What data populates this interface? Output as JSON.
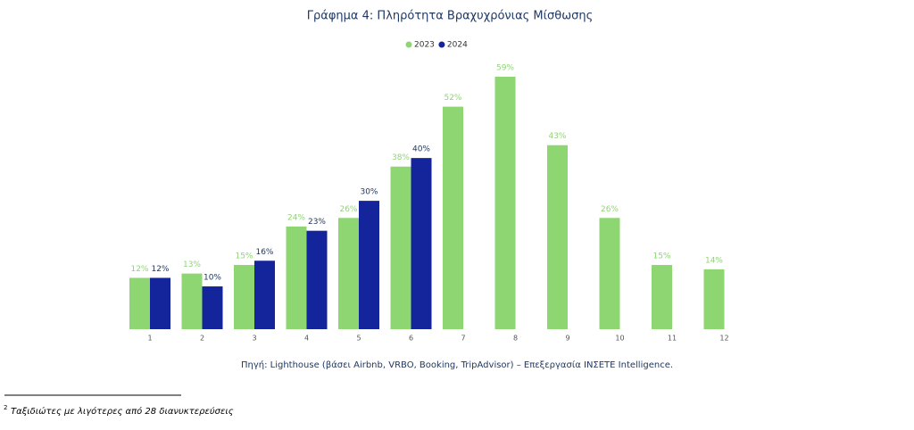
{
  "chart_data": {
    "type": "bar",
    "title": "Γράφημα 4: Πληρότητα Βραχυχρόνιας Μίσθωσης",
    "categories": [
      "1",
      "2",
      "3",
      "4",
      "5",
      "6",
      "7",
      "8",
      "9",
      "10",
      "11",
      "12"
    ],
    "series": [
      {
        "name": "2023",
        "color": "#8dd672",
        "values": [
          12,
          13,
          15,
          24,
          26,
          38,
          52,
          59,
          43,
          26,
          15,
          14
        ],
        "value_labels": [
          "12%",
          "13%",
          "15%",
          "24%",
          "26%",
          "38%",
          "52%",
          "59%",
          "43%",
          "26%",
          "15%",
          "14%"
        ]
      },
      {
        "name": "2024",
        "color": "#14259c",
        "values": [
          12,
          10,
          16,
          23,
          30,
          40,
          null,
          null,
          null,
          null,
          null,
          null
        ],
        "value_labels": [
          "12%",
          "10%",
          "16%",
          "23%",
          "30%",
          "40%",
          null,
          null,
          null,
          null,
          null,
          null
        ]
      }
    ],
    "source": "Πηγή: Lighthouse (βάσει Airbnb, VRBO, Booking, TripAdvisor) – Επεξεργασία INΣΕΤΕ Intelligence.",
    "footnote_mark": "2",
    "footnote": "Ταξιδιώτες με λιγότερες από 28 διανυκτερεύσεις"
  }
}
